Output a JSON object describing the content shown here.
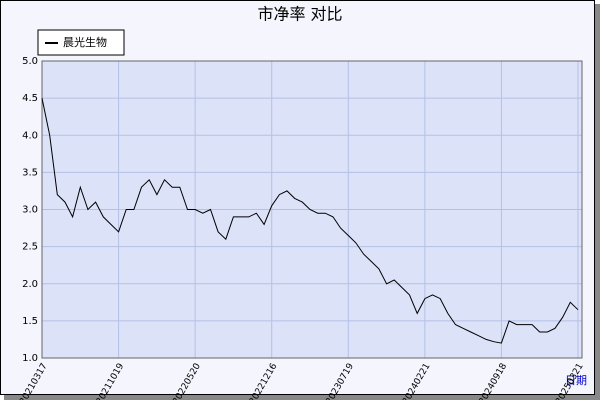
{
  "chart_data": {
    "type": "line",
    "title": "市净率 对比",
    "xlabel": "日期",
    "x": [
      "20210317",
      "20210407",
      "20210429",
      "20210520",
      "20210611",
      "20210702",
      "20210723",
      "20210814",
      "20210904",
      "20210926",
      "20211019",
      "20211110",
      "20211201",
      "20211223",
      "20220113",
      "20220204",
      "20220225",
      "20220319",
      "20220409",
      "20220430",
      "20220520",
      "20220610",
      "20220701",
      "20220722",
      "20220812",
      "20220902",
      "20220923",
      "20221014",
      "20221104",
      "20221125",
      "20221216",
      "20230106",
      "20230128",
      "20230218",
      "20230311",
      "20230402",
      "20230423",
      "20230514",
      "20230605",
      "20230627",
      "20230719",
      "20230810",
      "20230831",
      "20230922",
      "20231013",
      "20231104",
      "20231126",
      "20231217",
      "20240108",
      "20240130",
      "20240221",
      "20240313",
      "20240403",
      "20240424",
      "20240515",
      "20240605",
      "20240626",
      "20240717",
      "20240807",
      "20240828",
      "20240918",
      "20241006",
      "20241024",
      "20241111",
      "20241129",
      "20241217",
      "20250104",
      "20250122",
      "20250209",
      "20250227",
      "20250321"
    ],
    "series": [
      {
        "name": "晨光生物",
        "color": "#000000",
        "values": [
          4.5,
          4.0,
          3.2,
          3.1,
          2.9,
          3.3,
          3.0,
          3.1,
          2.9,
          2.8,
          2.7,
          3.0,
          3.0,
          3.3,
          3.4,
          3.2,
          3.4,
          3.3,
          3.3,
          3.0,
          3.0,
          2.95,
          3.0,
          2.7,
          2.6,
          2.9,
          2.9,
          2.9,
          2.95,
          2.8,
          3.05,
          3.2,
          3.25,
          3.15,
          3.1,
          3.0,
          2.95,
          2.95,
          2.9,
          2.75,
          2.65,
          2.55,
          2.4,
          2.3,
          2.2,
          2.0,
          2.05,
          1.95,
          1.85,
          1.6,
          1.8,
          1.85,
          1.8,
          1.6,
          1.45,
          1.4,
          1.35,
          1.3,
          1.25,
          1.22,
          1.2,
          1.5,
          1.45,
          1.45,
          1.45,
          1.35,
          1.35,
          1.4,
          1.55,
          1.75,
          1.65
        ]
      }
    ],
    "xticks": [
      "20210317",
      "20211019",
      "20220520",
      "20221216",
      "20230719",
      "20240221",
      "20240918",
      "20250321"
    ],
    "ylim": [
      1.0,
      5.0
    ],
    "yticks": [
      {
        "value": 1.0,
        "label": "1.0"
      },
      {
        "value": 1.5,
        "label": "1.5"
      },
      {
        "value": 2.0,
        "label": "2.0"
      },
      {
        "value": 2.5,
        "label": "2.5"
      },
      {
        "value": 3.0,
        "label": "3.0"
      },
      {
        "value": 3.5,
        "label": "3.5"
      },
      {
        "value": 4.0,
        "label": "4.0"
      },
      {
        "value": 4.5,
        "label": "4.5"
      },
      {
        "value": 5.0,
        "label": "5.0"
      }
    ],
    "grid": true
  }
}
